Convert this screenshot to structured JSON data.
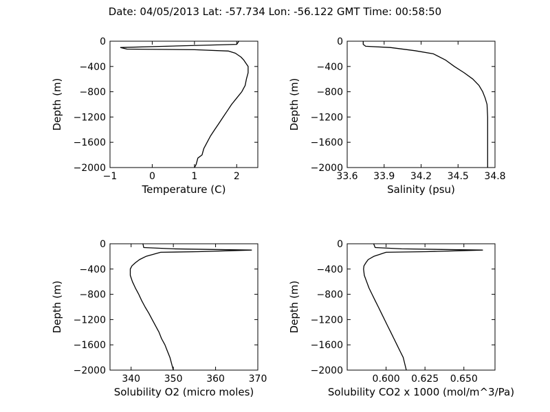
{
  "header": {
    "title": "Date: 04/05/2013  Lat:  -57.734 Lon:  -56.122  GMT Time: 00:58:50"
  },
  "chart_data": [
    {
      "type": "line",
      "xlabel": "Temperature (C)",
      "ylabel": "Depth (m)",
      "xlim": [
        -1,
        2.5
      ],
      "ylim": [
        -2000,
        0
      ],
      "xticks": [
        -1,
        0,
        1,
        2
      ],
      "yticks": [
        0,
        -400,
        -800,
        -1200,
        -1600,
        -2000
      ],
      "xtick_labels": [
        "−1",
        "0",
        "1",
        "2"
      ],
      "ytick_labels": [
        "0",
        "−400",
        "−800",
        "−1200",
        "−1600",
        "−2000"
      ],
      "series": [
        {
          "x": [
            2.05,
            2.0,
            0.6,
            -0.75,
            -0.6,
            1.0,
            1.8,
            1.97,
            2.1,
            2.17,
            2.22,
            2.27,
            2.27,
            2.23,
            2.2,
            2.12,
            2.0,
            1.88,
            1.78,
            1.68,
            1.58,
            1.48,
            1.38,
            1.3,
            1.22,
            1.18,
            1.08,
            1.04,
            1.0
          ],
          "y": [
            0,
            -50,
            -75,
            -100,
            -125,
            -135,
            -155,
            -190,
            -250,
            -300,
            -350,
            -400,
            -500,
            -600,
            -700,
            -800,
            -900,
            -1000,
            -1100,
            -1200,
            -1300,
            -1400,
            -1500,
            -1600,
            -1700,
            -1800,
            -1850,
            -1950,
            -2000
          ]
        }
      ]
    },
    {
      "type": "line",
      "xlabel": "Salinity (psu)",
      "ylabel": "Depth (m)",
      "xlim": [
        33.6,
        34.8
      ],
      "ylim": [
        -2000,
        0
      ],
      "xticks": [
        33.6,
        33.9,
        34.2,
        34.5,
        34.8
      ],
      "yticks": [
        0,
        -400,
        -800,
        -1200,
        -1600,
        -2000
      ],
      "xtick_labels": [
        "33.6",
        "33.9",
        "34.2",
        "34.5",
        "34.8"
      ],
      "ytick_labels": [
        "0",
        "−400",
        "−800",
        "−1200",
        "−1600",
        "−2000"
      ],
      "series": [
        {
          "x": [
            33.73,
            33.73,
            33.75,
            33.95,
            34.15,
            34.3,
            34.4,
            34.47,
            34.55,
            34.62,
            34.67,
            34.7,
            34.72,
            34.735,
            34.74,
            34.74,
            34.74,
            34.74
          ],
          "y": [
            0,
            -50,
            -80,
            -100,
            -150,
            -200,
            -300,
            -400,
            -500,
            -600,
            -700,
            -800,
            -900,
            -1000,
            -1200,
            -1400,
            -1600,
            -2000
          ]
        }
      ]
    },
    {
      "type": "line",
      "xlabel": "Solubility O2 (micro moles)",
      "ylabel": "Depth (m)",
      "xlim": [
        335,
        370
      ],
      "ylim": [
        -2000,
        0
      ],
      "xticks": [
        340,
        350,
        360,
        370
      ],
      "yticks": [
        0,
        -400,
        -800,
        -1200,
        -1600,
        -2000
      ],
      "xtick_labels": [
        "340",
        "350",
        "360",
        "370"
      ],
      "ytick_labels": [
        "0",
        "−400",
        "−800",
        "−1200",
        "−1600",
        "−2000"
      ],
      "series": [
        {
          "x": [
            342.8,
            343.0,
            350.0,
            368.5,
            356.0,
            347.0,
            343.5,
            342.0,
            341.0,
            340.2,
            339.8,
            339.8,
            340.3,
            341.0,
            341.8,
            342.5,
            343.3,
            344.2,
            345.0,
            345.8,
            346.6,
            347.2,
            348.0,
            348.6,
            349.2,
            350.0
          ],
          "y": [
            0,
            -60,
            -80,
            -100,
            -125,
            -135,
            -200,
            -250,
            -300,
            -350,
            -400,
            -500,
            -600,
            -700,
            -800,
            -900,
            -1000,
            -1100,
            -1200,
            -1300,
            -1400,
            -1500,
            -1600,
            -1700,
            -1800,
            -2000
          ]
        }
      ]
    },
    {
      "type": "line",
      "xlabel": "Solubility CO2 x 1000 (mol/m^3/Pa)",
      "ylabel": "Depth (m)",
      "xlim": [
        0.575,
        0.67
      ],
      "ylim": [
        -2000,
        0
      ],
      "xticks": [
        0.6,
        0.625,
        0.65
      ],
      "yticks": [
        0,
        -400,
        -800,
        -1200,
        -1600,
        -2000
      ],
      "xtick_labels": [
        "0.600",
        "0.625",
        "0.650"
      ],
      "ytick_labels": [
        "0",
        "−400",
        "−800",
        "−1200",
        "−1600",
        "−2000"
      ],
      "series": [
        {
          "x": [
            0.592,
            0.593,
            0.61,
            0.662,
            0.626,
            0.6,
            0.592,
            0.5885,
            0.587,
            0.5858,
            0.5855,
            0.586,
            0.5875,
            0.589,
            0.591,
            0.593,
            0.595,
            0.597,
            0.599,
            0.601,
            0.603,
            0.605,
            0.607,
            0.609,
            0.611,
            0.613
          ],
          "y": [
            0,
            -60,
            -80,
            -100,
            -125,
            -135,
            -200,
            -250,
            -300,
            -350,
            -400,
            -500,
            -600,
            -700,
            -800,
            -900,
            -1000,
            -1100,
            -1200,
            -1300,
            -1400,
            -1500,
            -1600,
            -1700,
            -1800,
            -2000
          ]
        }
      ]
    }
  ]
}
